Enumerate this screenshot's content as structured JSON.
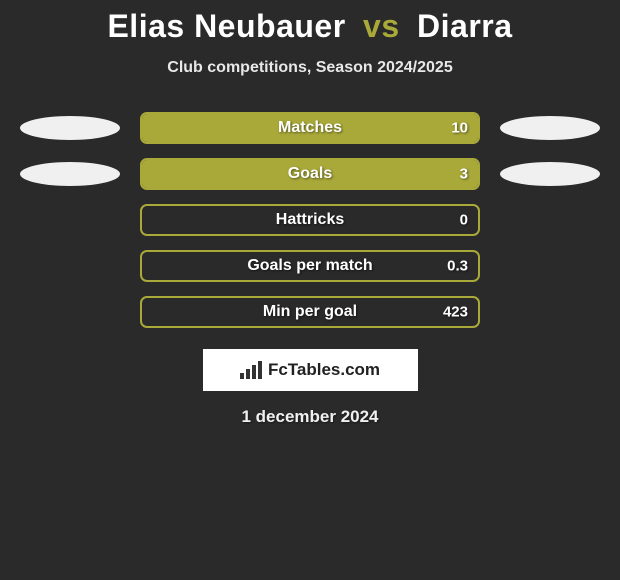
{
  "title": {
    "player1": "Elias Neubauer",
    "vs": "vs",
    "player2": "Diarra",
    "vs_color": "#a9a93a"
  },
  "subtitle": "Club competitions, Season 2024/2025",
  "colors": {
    "bar_border": "#a9a93a",
    "bar_fill": "#a9a93a",
    "background": "#2a2a2a",
    "ellipse_bg": "#f0f0f0"
  },
  "stats": [
    {
      "label": "Matches",
      "value": "10",
      "fill_pct": 100,
      "show_ellipses": true
    },
    {
      "label": "Goals",
      "value": "3",
      "fill_pct": 100,
      "show_ellipses": true
    },
    {
      "label": "Hattricks",
      "value": "0",
      "fill_pct": 0,
      "show_ellipses": false
    },
    {
      "label": "Goals per match",
      "value": "0.3",
      "fill_pct": 0,
      "show_ellipses": false
    },
    {
      "label": "Min per goal",
      "value": "423",
      "fill_pct": 0,
      "show_ellipses": false
    }
  ],
  "brand": "FcTables.com",
  "date": "1 december 2024"
}
